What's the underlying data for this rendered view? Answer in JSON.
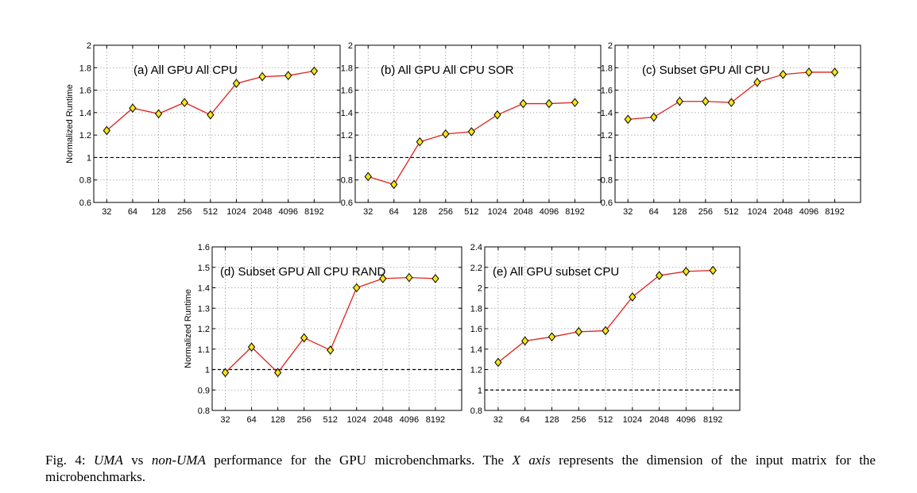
{
  "colors": {
    "line": "#e0211d",
    "marker_fill": "#f5e51a",
    "marker_stroke": "#000000",
    "grid": "#9a9a9a",
    "reference_line": "#000000"
  },
  "chart_data": [
    {
      "type": "line",
      "title": "(a) All GPU All CPU",
      "ylabel": "Normalized Runtime",
      "categories": [
        "32",
        "64",
        "128",
        "256",
        "512",
        "1024",
        "2048",
        "4096",
        "8192"
      ],
      "values": [
        1.24,
        1.44,
        1.39,
        1.49,
        1.38,
        1.66,
        1.72,
        1.73,
        1.77
      ],
      "ylim": [
        0.6,
        2
      ],
      "yticks": [
        "0.6",
        "0.8",
        "1",
        "1.2",
        "1.4",
        "1.6",
        "1.8",
        "2"
      ],
      "reference_y": 1,
      "grid": true
    },
    {
      "type": "line",
      "title": "(b) All GPU All CPU SOR",
      "ylabel": "",
      "categories": [
        "32",
        "64",
        "128",
        "256",
        "512",
        "1024",
        "2048",
        "4096",
        "8192"
      ],
      "values": [
        0.83,
        0.76,
        1.14,
        1.21,
        1.23,
        1.38,
        1.48,
        1.48,
        1.49
      ],
      "ylim": [
        0.6,
        2
      ],
      "yticks": [
        "0.6",
        "0.8",
        "1",
        "1.2",
        "1.4",
        "1.6",
        "1.8",
        "2"
      ],
      "reference_y": 1,
      "grid": true
    },
    {
      "type": "line",
      "title": "(c) Subset GPU All CPU",
      "ylabel": "",
      "categories": [
        "32",
        "64",
        "128",
        "256",
        "512",
        "1024",
        "2048",
        "4096",
        "8192"
      ],
      "values": [
        1.34,
        1.36,
        1.5,
        1.5,
        1.49,
        1.67,
        1.74,
        1.76,
        1.76
      ],
      "ylim": [
        0.6,
        2
      ],
      "yticks": [
        "0.6",
        "0.8",
        "1",
        "1.2",
        "1.4",
        "1.6",
        "1.8",
        "2"
      ],
      "reference_y": 1,
      "grid": true
    },
    {
      "type": "line",
      "title": "(d) Subset GPU All CPU RAND",
      "ylabel": "Normalized Runtime",
      "categories": [
        "32",
        "64",
        "128",
        "256",
        "512",
        "1024",
        "2048",
        "4096",
        "8192"
      ],
      "values": [
        0.985,
        1.11,
        0.985,
        1.155,
        1.095,
        1.4,
        1.445,
        1.45,
        1.445
      ],
      "ylim": [
        0.8,
        1.6
      ],
      "yticks": [
        "0.8",
        "0.9",
        "1",
        "1.1",
        "1.2",
        "1.3",
        "1.4",
        "1.5",
        "1.6"
      ],
      "reference_y": 1,
      "grid": true
    },
    {
      "type": "line",
      "title": "(e) All GPU subset CPU",
      "ylabel": "",
      "categories": [
        "32",
        "64",
        "128",
        "256",
        "512",
        "1024",
        "2048",
        "4096",
        "8192"
      ],
      "values": [
        1.27,
        1.48,
        1.52,
        1.57,
        1.58,
        1.91,
        2.12,
        2.16,
        2.17
      ],
      "ylim": [
        0.8,
        2.4
      ],
      "yticks": [
        "0.8",
        "1",
        "1.2",
        "1.4",
        "1.6",
        "1.8",
        "2",
        "2.2",
        "2.4"
      ],
      "reference_y": 1,
      "grid": true
    }
  ],
  "caption": {
    "prefix": "Fig. 4: ",
    "term1": "UMA",
    "mid1": " vs ",
    "term2": "non-UMA",
    "mid2": " performance for the GPU microbenchmarks. The ",
    "term3": "X axis",
    "suffix": " represents the dimension of the input matrix for the microbenchmarks."
  }
}
